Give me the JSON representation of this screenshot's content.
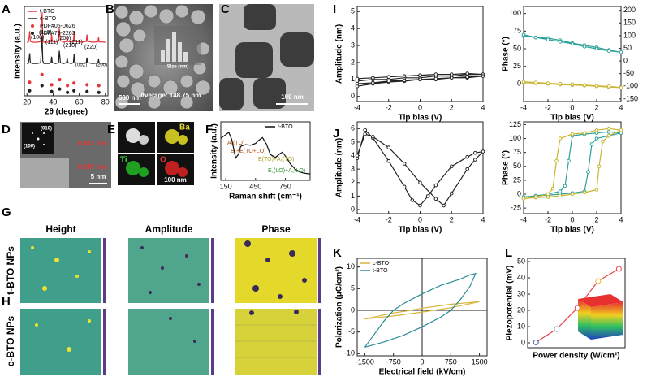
{
  "panel_labels": [
    "A",
    "B",
    "C",
    "D",
    "E",
    "F",
    "G",
    "H",
    "I",
    "J",
    "K",
    "L"
  ],
  "images": {
    "B": {
      "scale": "500 nm",
      "average": "Average: 148.75 nm",
      "axis": "Size (nm)"
    },
    "C": {
      "scale": "100 nm"
    },
    "D": {
      "zone1": "(010)",
      "zone2": "(100)",
      "d1": "0.402 nm",
      "d2": "0.399 nm",
      "scale": "5 nm"
    },
    "E": {
      "elements": [
        "Ba",
        "Ti",
        "O"
      ],
      "scale": "100 nm"
    },
    "G": {
      "columns": [
        "Height",
        "Amplitude",
        "Phase"
      ],
      "rows": [
        "t-BTO NPs",
        "c-BTO NPs"
      ]
    }
  },
  "chart_data": [
    {
      "type": "line",
      "xlabel": "2θ (degree)",
      "ylabel": "Intensity (a.u.)",
      "xlim": [
        18,
        82
      ],
      "ylim": [
        0,
        10.5
      ],
      "xticks": [
        20,
        40,
        60,
        80
      ],
      "legend": "upper left",
      "annotations": [
        "(100)",
        "(110)",
        "(111)",
        "(200)",
        "(210)",
        "(211)",
        "(220)",
        "(002)",
        "(200)"
      ],
      "series": [
        {
          "name": "t-BTO",
          "color": "#e8343a",
          "mode": "line",
          "x": [
            20,
            21,
            21.6,
            22.1,
            22.6,
            24,
            28,
            30.5,
            31.1,
            31.6,
            32.1,
            33,
            37,
            38.4,
            38.9,
            39.4,
            42,
            44.2,
            44.7,
            45.1,
            45.6,
            48,
            50.3,
            50.8,
            51.3,
            54,
            55.6,
            56.1,
            56.6,
            62,
            65.4,
            65.9,
            66.4,
            70,
            74.3,
            74.8,
            75.3,
            80
          ],
          "values": [
            6.3,
            6.3,
            6.8,
            7.6,
            6.4,
            6.3,
            6.3,
            6.4,
            8.5,
            9.8,
            6.6,
            6.3,
            6.3,
            6.4,
            7.2,
            6.4,
            6.3,
            6.5,
            7.9,
            7.4,
            6.5,
            6.3,
            6.4,
            7.0,
            6.4,
            6.3,
            6.4,
            7.6,
            6.4,
            6.3,
            6.4,
            7.2,
            6.4,
            6.3,
            6.35,
            6.9,
            6.35,
            6.3
          ]
        },
        {
          "name": "c-BTO",
          "color": "#222222",
          "mode": "line",
          "x": [
            20,
            21,
            21.6,
            22.1,
            22.6,
            24,
            28,
            30.5,
            31.1,
            31.6,
            32.1,
            33,
            37,
            38.4,
            38.9,
            39.4,
            42,
            44.2,
            44.7,
            45.1,
            45.6,
            48,
            50.3,
            50.8,
            51.3,
            54,
            55.6,
            56.1,
            56.6,
            62,
            65.4,
            65.9,
            66.4,
            70,
            74.3,
            74.8,
            75.3,
            80
          ],
          "values": [
            3.8,
            3.8,
            4.3,
            5.0,
            3.9,
            3.8,
            3.8,
            3.9,
            5.8,
            7.0,
            4.1,
            3.8,
            3.8,
            3.9,
            4.6,
            3.9,
            3.8,
            3.9,
            5.3,
            4.8,
            3.9,
            3.8,
            3.9,
            4.4,
            3.9,
            3.8,
            3.9,
            4.9,
            3.9,
            3.8,
            3.9,
            4.5,
            3.9,
            3.8,
            3.85,
            4.3,
            3.85,
            3.8
          ]
        },
        {
          "name": "PDF#05-0626",
          "color": "#e8343a",
          "mode": "markers",
          "x": [
            22,
            31.5,
            38.9,
            45,
            51,
            56,
            66,
            75
          ],
          "values": [
            1.6,
            2.5,
            1.3,
            1.9,
            1.2,
            1.5,
            1.3,
            1.2
          ]
        },
        {
          "name": "PDF#79-2263",
          "color": "#222222",
          "mode": "markers",
          "x": [
            22,
            31.5,
            38.9,
            45,
            51,
            56,
            66,
            75
          ],
          "values": [
            0.6,
            1.2,
            0.5,
            0.8,
            0.4,
            0.6,
            0.5,
            0.4
          ]
        }
      ]
    },
    {
      "type": "line",
      "xlabel": "Raman shift (cm⁻¹)",
      "ylabel": "Intensity (a.u.)",
      "xlim": [
        100,
        1000
      ],
      "ylim": [
        0,
        10
      ],
      "xticks": [
        150,
        450,
        750
      ],
      "legend": "upper right",
      "annotations": [
        "A₁(TO)",
        "B₁+E(TO+LO)",
        "E(TO)+A₁(TO)",
        "E₁(LO)+A₁(LO)"
      ],
      "series": [
        {
          "name": "t-BTO",
          "color": "#111111",
          "mode": "line",
          "x": [
            100,
            150,
            180,
            210,
            250,
            280,
            300,
            350,
            400,
            450,
            480,
            520,
            560,
            600,
            650,
            700,
            720,
            750,
            800,
            850,
            900,
            950,
            1000
          ],
          "values": [
            7.2,
            7.8,
            8.2,
            7.0,
            3.8,
            4.5,
            5.8,
            6.1,
            6.0,
            6.3,
            6.8,
            7.3,
            6.2,
            4.4,
            3.9,
            4.6,
            4.8,
            4.2,
            2.8,
            1.9,
            1.4,
            1.2,
            1.1
          ]
        }
      ]
    },
    {
      "type": "line",
      "xlabel": "Tip bias (V)",
      "ylabel": "Amplitude (nm)",
      "xlim": [
        -4,
        4
      ],
      "ylim": [
        -0.3,
        5.3
      ],
      "xticks": [
        -4,
        -2,
        0,
        2,
        4
      ],
      "yticks": [
        0,
        1,
        2,
        3,
        4,
        5
      ],
      "series": [
        {
          "color": "#222222",
          "mode": "line+markers",
          "x": [
            -4,
            -3,
            -2,
            -1,
            0,
            1,
            2,
            3,
            4,
            3,
            2,
            1,
            0,
            -1,
            -2,
            -3,
            -4
          ],
          "values": [
            0.9,
            1.0,
            1.0,
            1.1,
            1.1,
            1.2,
            1.2,
            1.3,
            1.3,
            1.35,
            1.3,
            1.3,
            1.25,
            1.2,
            1.15,
            1.1,
            1.05
          ]
        },
        {
          "color": "#222222",
          "mode": "line+markers",
          "x": [
            -4,
            -3,
            -2,
            -1,
            0,
            1,
            2,
            3,
            4,
            3,
            2,
            1,
            0,
            -1,
            -2,
            -3,
            -4
          ],
          "values": [
            0.6,
            0.75,
            0.85,
            0.9,
            1.0,
            1.0,
            1.1,
            1.1,
            1.2,
            1.15,
            1.1,
            1.05,
            1.0,
            0.95,
            0.9,
            0.8,
            0.75
          ]
        }
      ]
    },
    {
      "type": "line",
      "xlabel": "Tip bias (V)",
      "ylabel": "Phase (°)",
      "xlim": [
        -4,
        4
      ],
      "ylim": [
        -25,
        110
      ],
      "xticks": [
        -4,
        -2,
        0,
        2,
        4
      ],
      "yticks": [
        0,
        25,
        50,
        75,
        100
      ],
      "y2lim": [
        -160,
        215
      ],
      "y2ticks": [
        -150,
        -100,
        -50,
        0,
        50,
        100,
        150,
        200
      ],
      "series": [
        {
          "color": "#2aa198",
          "mode": "line+markers",
          "x": [
            -4,
            -3,
            -2,
            -1,
            0,
            1,
            2,
            3,
            4,
            3,
            2,
            1,
            0,
            -1,
            -2,
            -3,
            -4
          ],
          "values": [
            68,
            66,
            65,
            62,
            58,
            55,
            52,
            48,
            45,
            47,
            50,
            53,
            57,
            60,
            63,
            66,
            70
          ]
        },
        {
          "color": "#c9b532",
          "mode": "line+markers",
          "axis": "y2",
          "x": [
            -4,
            -3,
            -2,
            -1,
            0,
            1,
            2,
            3,
            4,
            3,
            2,
            1,
            0,
            -1,
            -2,
            -3,
            -4
          ],
          "values": [
            -85,
            -88,
            -90,
            -93,
            -95,
            -97,
            -100,
            -103,
            -105,
            -100,
            -98,
            -95,
            -92,
            -90,
            -88,
            -85,
            -82
          ]
        }
      ]
    },
    {
      "type": "line",
      "xlabel": "Tip bias (V)",
      "ylabel": "Amplitude (nm)",
      "xlim": [
        -4,
        4
      ],
      "ylim": [
        -0.3,
        6.5
      ],
      "xticks": [
        -4,
        -2,
        0,
        2,
        4
      ],
      "yticks": [
        0,
        1,
        2,
        3,
        4,
        5,
        6
      ],
      "series": [
        {
          "color": "#222222",
          "mode": "line+markers",
          "x": [
            -4,
            -3.5,
            -3,
            -2,
            -1,
            -0.5,
            0,
            0.5,
            1,
            2,
            3,
            3.5,
            4,
            3.5,
            3,
            2,
            1.5,
            1,
            0,
            -1,
            -2,
            -3,
            -3.5,
            -4
          ],
          "values": [
            3.8,
            5.9,
            5.3,
            3.6,
            1.7,
            0.7,
            0.3,
            1.0,
            1.8,
            3.2,
            3.9,
            4.2,
            4.3,
            3.7,
            3.0,
            1.2,
            0.3,
            0.8,
            2.0,
            3.4,
            4.6,
            5.4,
            5.6,
            4.0
          ]
        }
      ]
    },
    {
      "type": "line",
      "xlabel": "Tip bias (V)",
      "ylabel": "Phase (°)",
      "xlim": [
        -4,
        4
      ],
      "ylim": [
        -35,
        130
      ],
      "xticks": [
        -4,
        -2,
        0,
        2,
        4
      ],
      "yticks": [
        -25,
        0,
        25,
        50,
        75,
        100,
        125
      ],
      "series": [
        {
          "color": "#2aa198",
          "mode": "line+markers",
          "x": [
            -4,
            -3,
            -2,
            -1,
            0,
            1,
            1.3,
            1.6,
            2,
            3,
            4,
            3,
            2,
            1,
            0,
            -0.3,
            -0.6,
            -1,
            -2,
            -3,
            -4
          ],
          "values": [
            -5,
            -3,
            -2,
            0,
            2,
            5,
            40,
            90,
            100,
            105,
            110,
            112,
            110,
            108,
            105,
            60,
            15,
            5,
            0,
            -3,
            -5
          ]
        },
        {
          "color": "#c9b532",
          "mode": "line+markers",
          "x": [
            -4,
            -3,
            -2,
            -1,
            0,
            1,
            2,
            2.2,
            2.5,
            3,
            4,
            3,
            2,
            1,
            0,
            -1,
            -1.3,
            -1.6,
            -2,
            -3,
            -4
          ],
          "values": [
            -8,
            -6,
            -5,
            -3,
            0,
            3,
            8,
            50,
            95,
            105,
            115,
            118,
            115,
            110,
            108,
            100,
            60,
            10,
            0,
            -5,
            -8
          ]
        }
      ]
    },
    {
      "type": "line",
      "xlabel": "Electrical field (kV/cm)",
      "ylabel": "Polarization (μC/cm²)",
      "xlim": [
        -1700,
        1700
      ],
      "ylim": [
        -10.5,
        12
      ],
      "xticks": [
        -1500,
        -750,
        0,
        750,
        1500
      ],
      "yticks": [
        -10,
        -5,
        0,
        5,
        10
      ],
      "legend": "upper left",
      "zero_lines": true,
      "series": [
        {
          "name": "c-BTO",
          "color": "#d8b43a",
          "mode": "line",
          "x": [
            -1500,
            -750,
            0,
            300,
            750,
            1500,
            750,
            0,
            -300,
            -750,
            -1500
          ],
          "values": [
            -2.0,
            -1.3,
            -0.4,
            0,
            0.6,
            2.0,
            1.4,
            0.5,
            0,
            -0.6,
            -2.0
          ]
        },
        {
          "name": "t-BTO",
          "color": "#2a8c96",
          "mode": "line",
          "x": [
            -1500,
            -1000,
            -500,
            0,
            500,
            750,
            1000,
            1250,
            1400,
            1250,
            1000,
            500,
            0,
            -500,
            -750,
            -1000,
            -1250,
            -1500
          ],
          "values": [
            -8.5,
            -7.3,
            -5.8,
            -3.8,
            -1.5,
            0,
            2.5,
            5.5,
            8.5,
            8.2,
            7.2,
            5.8,
            3.8,
            1.5,
            0,
            -2.5,
            -5.5,
            -8.5
          ]
        }
      ]
    },
    {
      "type": "line",
      "xlabel": "Power density (W/cm²)",
      "ylabel": "Piezopotential (mV)",
      "xlim": [
        -0.4,
        4.3
      ],
      "ylim": [
        -3,
        52
      ],
      "yticks": [
        0,
        10,
        20,
        30,
        40,
        50
      ],
      "series": [
        {
          "color": "#e8464a",
          "mode": "line+markers",
          "marker_colors": [
            "#4b4ba8",
            "#6b8fd6",
            "#e8464a",
            "#f2b632",
            "#e8464a"
          ],
          "x": [
            0,
            1,
            2,
            3,
            4
          ],
          "values": [
            0.3,
            8.5,
            21.5,
            38,
            45.5
          ]
        }
      ]
    }
  ]
}
